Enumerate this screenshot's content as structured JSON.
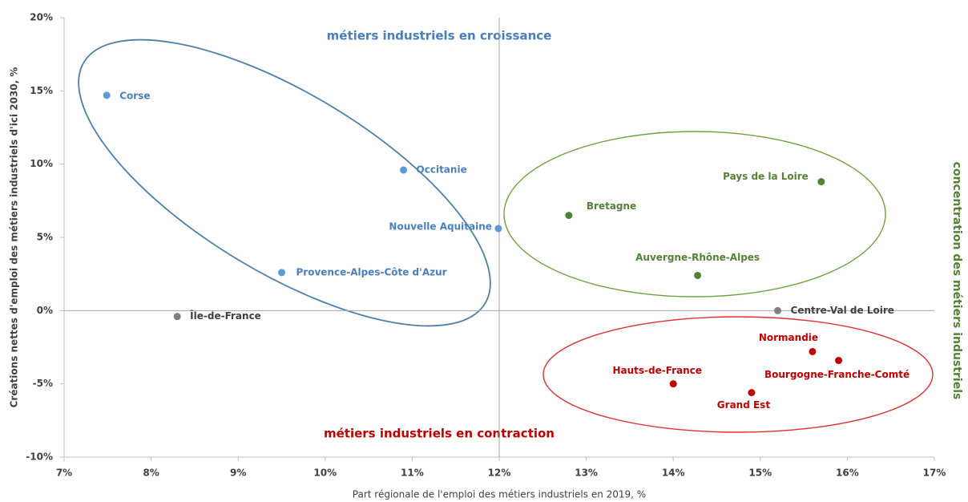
{
  "chart_data": {
    "type": "scatter",
    "x_label": "Part régionale de l'emploi des métiers industriels en 2019, %",
    "y_label": "Créations nettes d'emploi des métiers industriels d'ici 2030, %",
    "annotations": [
      "métiers industriels en croissance",
      "métiers industriels en contraction",
      "concentration des métiers industriels"
    ],
    "labels": [
      "Corse",
      "Occitanie",
      "Nouvelle Aquitaine",
      "Provence-Alpes-Côte d'Azur",
      "Île-de-France",
      "Bretagne",
      "Pays de la Loire",
      "Auvergne-Rhône-Alpes",
      "Centre-Val de Loire",
      "Normandie",
      "Bourgogne-Franche-Comté",
      "Hauts-de-France",
      "Grand Est"
    ],
    "x": [
      7.49,
      10.9,
      11.99,
      9.5,
      8.3,
      12.8,
      15.7,
      14.28,
      15.2,
      15.6,
      15.9,
      14.0,
      14.9
    ],
    "values": [
      14.7,
      9.6,
      5.6,
      2.6,
      -0.4,
      6.5,
      8.8,
      2.4,
      0,
      -2.8,
      -3.4,
      -5.0,
      -5.6
    ],
    "colors": [
      "#5b9bd5",
      "#5b9bd5",
      "#5b9bd5",
      "#5b9bd5",
      "#808080",
      "#548235",
      "#548235",
      "#548235",
      "#808080",
      "#c00000",
      "#c00000",
      "#c00000",
      "#c00000"
    ],
    "quadrant_lines": {
      "x": 12,
      "y": 0
    },
    "xlim": [
      7,
      17
    ],
    "xticks": [
      {
        "value": 7,
        "label": "7%"
      },
      {
        "value": 8,
        "label": "8%"
      },
      {
        "value": 9,
        "label": "9%"
      },
      {
        "value": 10,
        "label": "10%"
      },
      {
        "value": 11,
        "label": "11%"
      },
      {
        "value": 12,
        "label": "12%"
      },
      {
        "value": 13,
        "label": "13%"
      },
      {
        "value": 14,
        "label": "14%"
      },
      {
        "value": 15,
        "label": "15%"
      },
      {
        "value": 16,
        "label": "16%"
      },
      {
        "value": 17,
        "label": "17%"
      }
    ],
    "ylim": [
      -10,
      20
    ],
    "yticks": [
      {
        "value": -10,
        "label": "-10%"
      },
      {
        "value": -5,
        "label": "-5%"
      },
      {
        "value": 0,
        "label": "0%"
      },
      {
        "value": 5,
        "label": "5%"
      },
      {
        "value": 10,
        "label": "10%"
      },
      {
        "value": 15,
        "label": "15%"
      },
      {
        "value": 20,
        "label": "20%"
      }
    ]
  }
}
